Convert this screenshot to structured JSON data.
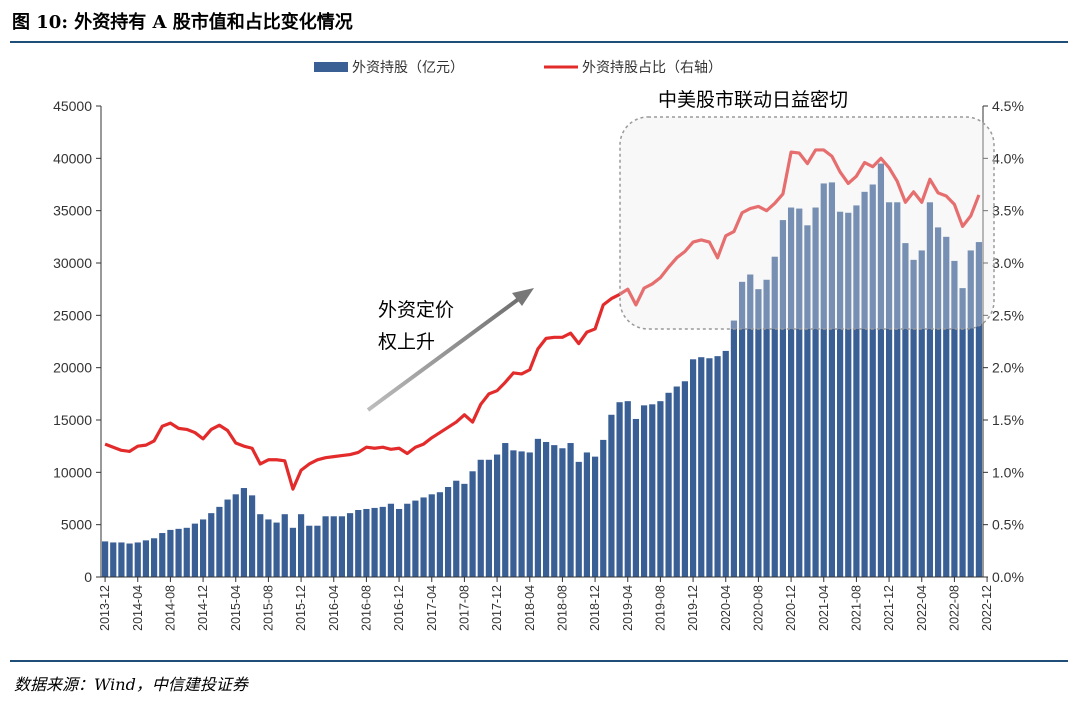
{
  "title": "图 10:  外资持有 A 股市值和占比变化情况",
  "source": "数据来源：Wind，中信建投证券",
  "chart_data": {
    "type": "bar+line",
    "legend": {
      "placement": "top-center",
      "entries": [
        "外资持股（亿元）",
        "外资持股占比（右轴）"
      ]
    },
    "left_axis": {
      "ylim": [
        0,
        45000
      ],
      "ticks": [
        "0",
        "5000",
        "10000",
        "15000",
        "20000",
        "25000",
        "30000",
        "35000",
        "40000",
        "45000"
      ]
    },
    "right_axis": {
      "ylim": [
        0,
        4.5
      ],
      "ticks": [
        "0.0%",
        "0.5%",
        "1.0%",
        "1.5%",
        "2.0%",
        "2.5%",
        "3.0%",
        "3.5%",
        "4.0%",
        "4.5%"
      ]
    },
    "x_labels": [
      "2013-12",
      "2014-04",
      "2014-08",
      "2014-12",
      "2015-04",
      "2015-08",
      "2015-12",
      "2016-04",
      "2016-08",
      "2016-12",
      "2017-04",
      "2017-08",
      "2017-12",
      "2018-04",
      "2018-08",
      "2018-12",
      "2019-04",
      "2019-08",
      "2019-12",
      "2020-04",
      "2020-08",
      "2020-12",
      "2021-04",
      "2021-08",
      "2021-12",
      "2022-04",
      "2022-08",
      "2022-12"
    ],
    "series": [
      {
        "name": "外资持股（亿元）",
        "type": "bar",
        "color": "#3A5F95",
        "values": [
          3400,
          3300,
          3300,
          3200,
          3300,
          3500,
          3700,
          4200,
          4500,
          4600,
          4700,
          5100,
          5500,
          6100,
          6700,
          7400,
          7900,
          8500,
          7800,
          6000,
          5500,
          5200,
          6000,
          4700,
          6000,
          4900,
          4900,
          5800,
          5800,
          5800,
          6100,
          6400,
          6500,
          6600,
          6700,
          7000,
          6500,
          7000,
          7300,
          7600,
          7900,
          8100,
          8600,
          9200,
          8900,
          10100,
          11200,
          11200,
          11700,
          12800,
          12100,
          12000,
          11900,
          13200,
          12900,
          12600,
          12300,
          12800,
          11000,
          11900,
          11500,
          13100,
          15500,
          16700,
          16800,
          15100,
          16400,
          16500,
          16800,
          17600,
          18200,
          18700,
          20800,
          21000,
          20900,
          21100,
          21600,
          24500,
          28200,
          28900,
          27500,
          28400,
          30600,
          34100,
          35300,
          35200,
          33600,
          35300,
          37600,
          37700,
          34900,
          34800,
          35500,
          36800,
          37500,
          39500,
          35800,
          35800,
          31900,
          30300,
          31200,
          35800,
          33400,
          32500,
          30200,
          27600,
          31200,
          32000
        ]
      },
      {
        "name": "外资持股占比（右轴）",
        "type": "line",
        "color": "#E32B2B",
        "values": [
          1.27,
          1.24,
          1.21,
          1.2,
          1.25,
          1.26,
          1.3,
          1.44,
          1.47,
          1.42,
          1.41,
          1.38,
          1.32,
          1.41,
          1.45,
          1.4,
          1.28,
          1.25,
          1.23,
          1.08,
          1.12,
          1.12,
          1.11,
          0.84,
          1.02,
          1.08,
          1.12,
          1.14,
          1.15,
          1.16,
          1.17,
          1.19,
          1.24,
          1.23,
          1.24,
          1.22,
          1.23,
          1.18,
          1.24,
          1.27,
          1.33,
          1.38,
          1.43,
          1.48,
          1.55,
          1.48,
          1.65,
          1.75,
          1.78,
          1.86,
          1.95,
          1.94,
          1.98,
          2.18,
          2.28,
          2.29,
          2.29,
          2.33,
          2.23,
          2.34,
          2.37,
          2.6,
          2.66,
          2.7,
          2.75,
          2.6,
          2.76,
          2.8,
          2.86,
          2.96,
          3.05,
          3.11,
          3.2,
          3.22,
          3.2,
          3.05,
          3.26,
          3.3,
          3.48,
          3.52,
          3.54,
          3.5,
          3.57,
          3.66,
          4.06,
          4.05,
          3.95,
          4.08,
          4.08,
          4.02,
          3.87,
          3.76,
          3.83,
          3.96,
          3.92,
          4.0,
          3.91,
          3.78,
          3.58,
          3.68,
          3.58,
          3.8,
          3.67,
          3.64,
          3.56,
          3.35,
          3.45,
          3.65
        ]
      }
    ],
    "annotations": {
      "box_label": "中美股市联动日益密切",
      "arrow_label_line1": "外资定价",
      "arrow_label_line2": "权上升"
    }
  }
}
